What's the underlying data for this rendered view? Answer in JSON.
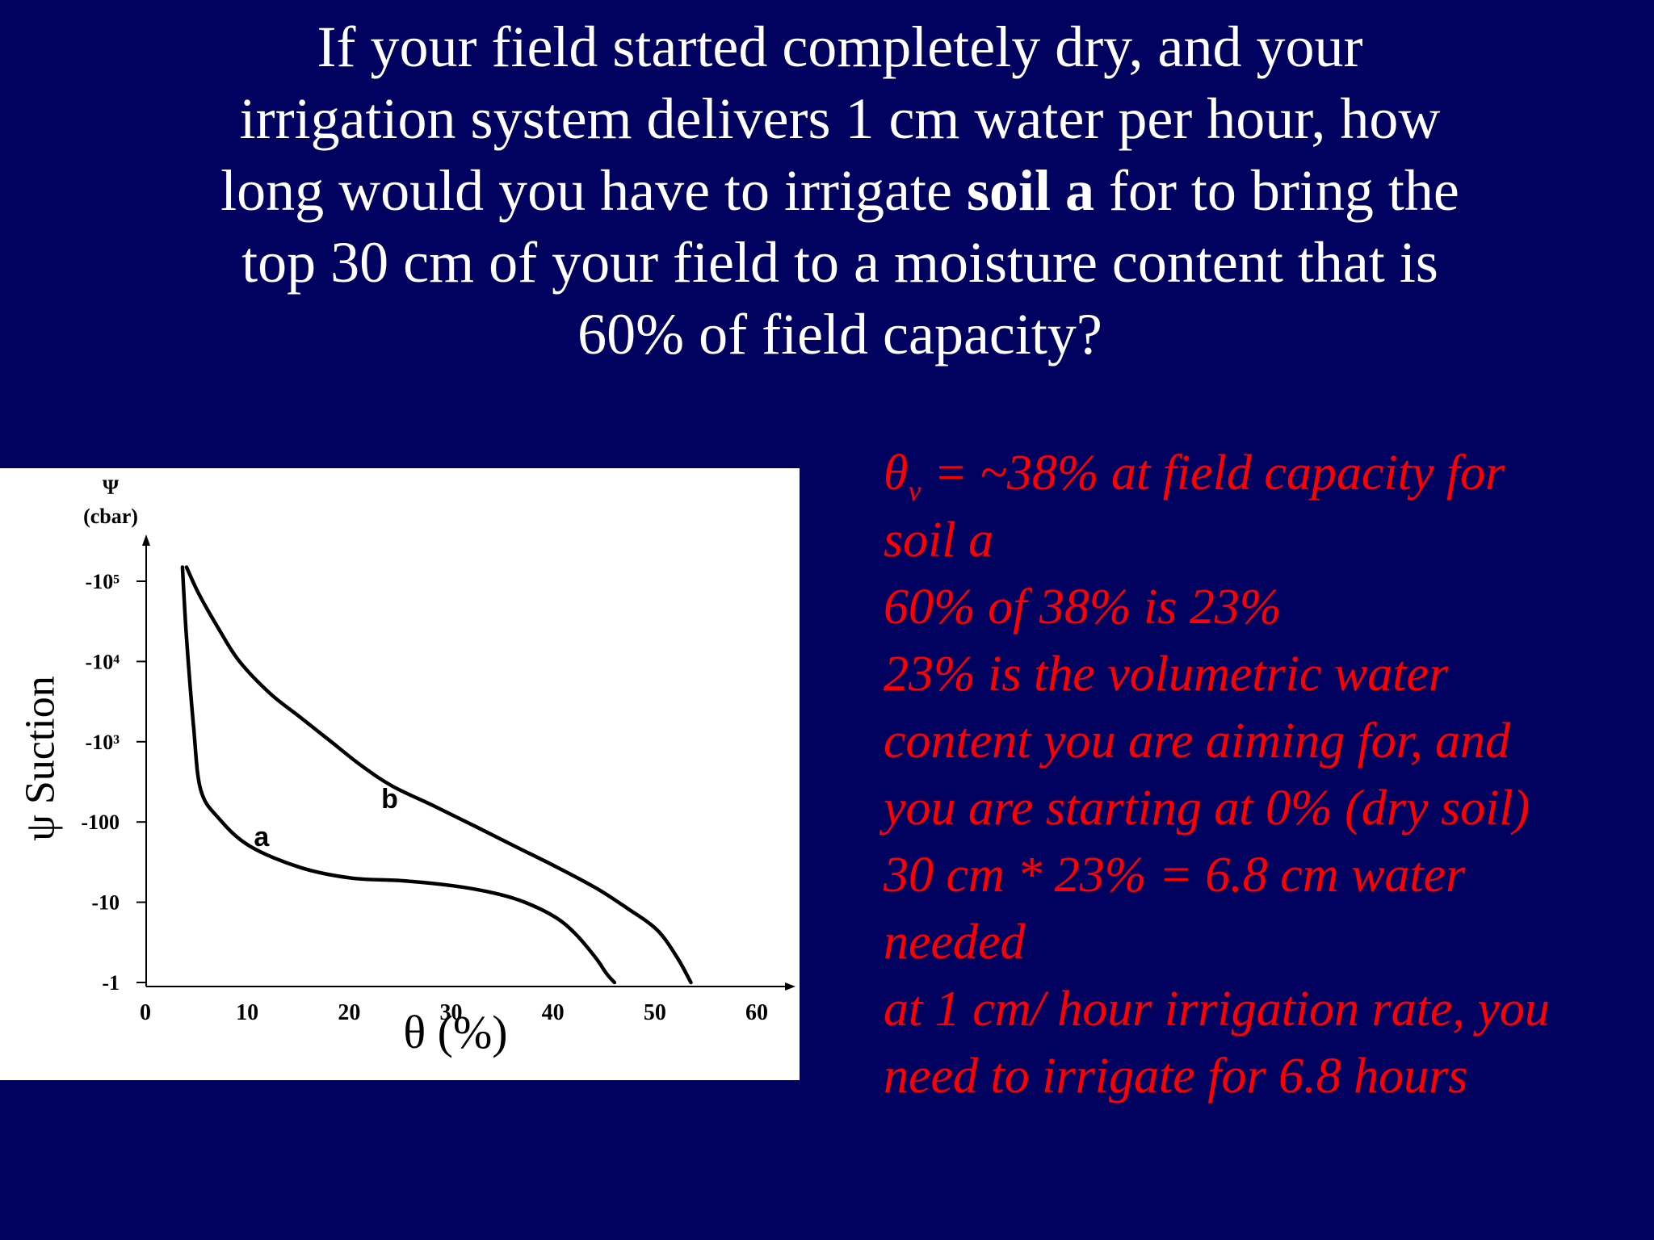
{
  "slide": {
    "question": {
      "line1": "If your field started completely dry, and your",
      "line2": "irrigation system delivers 1 cm water per hour, how",
      "line3_pre": "long would you have to irrigate ",
      "line3_bold": "soil a",
      "line3_post": " for to bring the",
      "line4": "top 30 cm of your field to a moisture content that is",
      "line5": "60% of field capacity?"
    },
    "answer": {
      "theta": "θ",
      "theta_sub": "v",
      "line1_rest": " = ~38% at field capacity for",
      "line2": "soil a",
      "line3": "60% of 38% is 23%",
      "line4": "23% is the  volumetric water",
      "line5": "content you are aiming for, and",
      "line6": "you are starting at 0% (dry soil)",
      "line7": "30 cm * 23% = 6.8 cm water",
      "line8": "needed",
      "line9": "at 1 cm/ hour irrigation rate, you",
      "line10": "need to irrigate for 6.8 hours"
    },
    "colors": {
      "background": "#010160",
      "question_text": "#ffffff",
      "answer_text": "#ff0000"
    }
  },
  "chart_data": {
    "type": "line",
    "xlabel": "θ (%)",
    "ylabel_symbol": "Ψ",
    "ylabel_unit": "(cbar)",
    "ylabel_side": "ψ Suction",
    "y_scale": "log",
    "xlim": [
      0,
      60
    ],
    "x_ticks": [
      "0",
      "10",
      "20",
      "30",
      "40",
      "50",
      "60"
    ],
    "y_ticks": [
      {
        "value": -1,
        "label": "-1"
      },
      {
        "value": -10,
        "label": "-10"
      },
      {
        "value": -100,
        "label": "-100"
      },
      {
        "value": -1000,
        "label": "-10³"
      },
      {
        "value": -10000,
        "label": "-10⁴"
      },
      {
        "value": -100000,
        "label": "-10⁵"
      }
    ],
    "series": [
      {
        "name": "a",
        "x": [
          3.4,
          3.8,
          4.5,
          5.2,
          7,
          10,
          15,
          20,
          25,
          30,
          34,
          37,
          40,
          42,
          44,
          45,
          45.8
        ],
        "y": [
          -150000,
          -20000,
          -1500,
          -250,
          -110,
          -50,
          -27,
          -20,
          -18.5,
          -16,
          -13,
          -10,
          -6.5,
          -4,
          -2,
          -1.3,
          -1
        ]
      },
      {
        "name": "b",
        "x": [
          3.8,
          5,
          7,
          9,
          12,
          15,
          18,
          21,
          24,
          28,
          32,
          36,
          40,
          44,
          47,
          50,
          52,
          53.3
        ],
        "y": [
          -150000,
          -70000,
          -25000,
          -10000,
          -4000,
          -2000,
          -1000,
          -500,
          -280,
          -160,
          -90,
          -50,
          -28,
          -15,
          -8.5,
          -4.5,
          -2,
          -1
        ]
      }
    ]
  }
}
